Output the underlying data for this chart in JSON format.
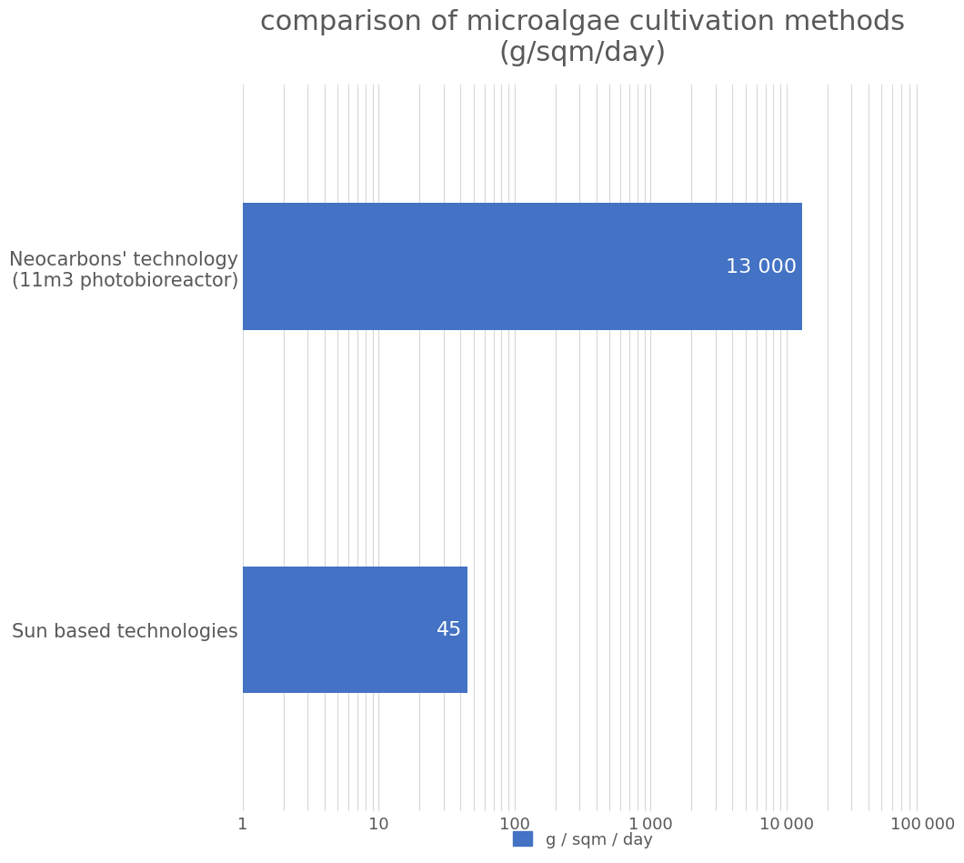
{
  "title": "comparison of microalgae cultivation methods\n(g/sqm/day)",
  "categories": [
    "Sun based technologies",
    "Neocarbons' technology\n(11m3 photobioreactor)"
  ],
  "values": [
    45,
    13000
  ],
  "bar_color": "#4472C4",
  "label_color": "#ffffff",
  "text_color": "#595959",
  "bar_labels": [
    "45",
    "13 000"
  ],
  "legend_label": "g / sqm / day",
  "xlim_min": 1,
  "xlim_max": 100000,
  "background_color": "#ffffff",
  "title_fontsize": 22,
  "ytick_fontsize": 15,
  "xtick_fontsize": 13,
  "bar_label_fontsize": 16,
  "legend_fontsize": 13,
  "grid_color": "#d8d8d8",
  "bar_height": 0.35
}
